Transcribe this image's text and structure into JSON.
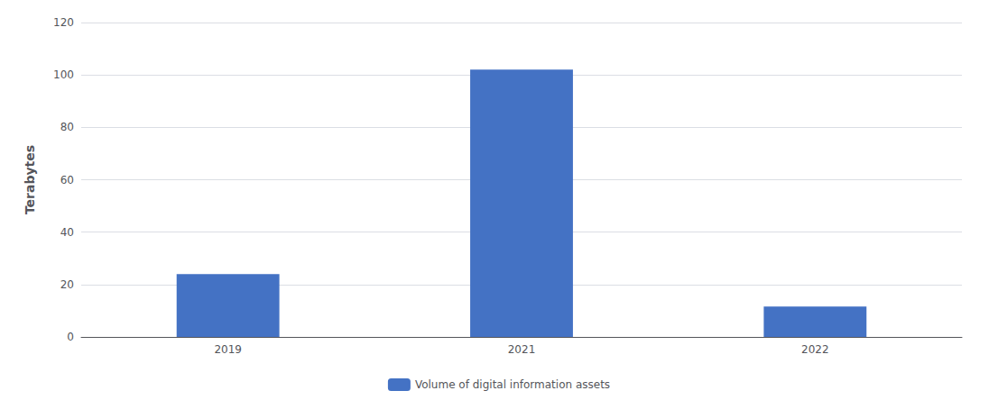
{
  "chart_data": {
    "type": "bar",
    "categories": [
      "2019",
      "2021",
      "2022"
    ],
    "values": [
      24,
      102,
      11.6
    ],
    "color": "#4472C4",
    "ylabel": "Terabytes",
    "ylim": [
      0,
      120
    ],
    "yticks": [
      0,
      20,
      40,
      60,
      80,
      100,
      120
    ],
    "grid": true,
    "legend": "bottom",
    "series_name": "Volume of digital information assets"
  }
}
